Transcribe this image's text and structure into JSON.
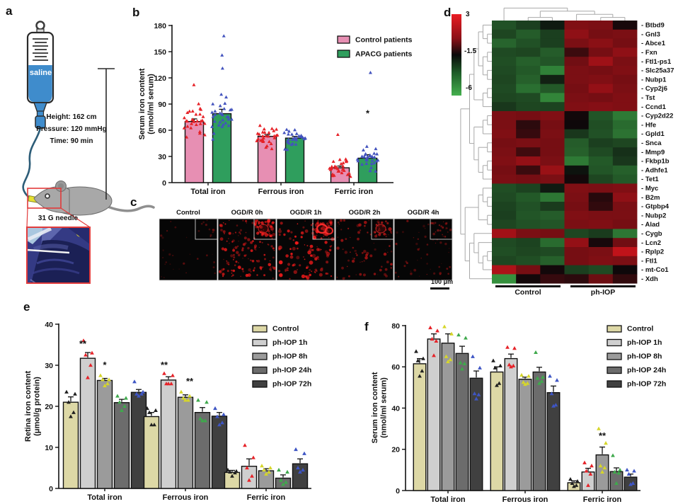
{
  "panels": {
    "a": {
      "letter": "a",
      "saline_label": "saline",
      "height_label": "Height: 162 cm",
      "pressure_label": "Pressure: 120 mmHg",
      "time_label": "Time: 90 min",
      "needle_label": "31 G needle"
    },
    "b": {
      "letter": "b"
    },
    "c": {
      "letter": "c",
      "images": [
        {
          "label": "Control"
        },
        {
          "label": "OGD/R 0h"
        },
        {
          "label": "OGD/R 1h"
        },
        {
          "label": "OGD/R 2h"
        },
        {
          "label": "OGD/R 4h"
        }
      ],
      "scale_label": "100 μm"
    },
    "d": {
      "letter": "d",
      "colorbar": {
        "max_label": "3",
        "mid_label": "-1.5",
        "min_label": "-6"
      },
      "group_labels": [
        "Control",
        "ph-IOP"
      ]
    },
    "e": {
      "letter": "e"
    },
    "f": {
      "letter": "f"
    }
  },
  "chart_data": [
    {
      "id": "b",
      "type": "bar",
      "title": "Serum iron in control vs APACG patients",
      "ylabel": "Serum iron content\n(nmol/ml serum)",
      "ylim": [
        0,
        180
      ],
      "yticks": [
        0,
        30,
        60,
        90,
        120,
        150,
        180
      ],
      "categories": [
        "Total iron",
        "Ferrous iron",
        "Ferric iron"
      ],
      "legend_position": "top-right",
      "series": [
        {
          "name": "Control patients",
          "color": "#E78FB3",
          "point_color": "#E62228",
          "means": [
            70,
            53,
            17
          ],
          "sem": [
            3,
            2,
            2
          ],
          "n_points": 30,
          "sd": [
            15,
            10,
            8
          ]
        },
        {
          "name": "APACG patients",
          "color": "#2F9E5D",
          "point_color": "#4353BE",
          "means": [
            79,
            51,
            28
          ],
          "sem": [
            5,
            2,
            4
          ],
          "n_points": 30,
          "sd": [
            20,
            9,
            11
          ]
        }
      ],
      "outliers": [
        {
          "ci": 0,
          "si": 1,
          "values": [
            168,
            146,
            131
          ]
        },
        {
          "ci": 0,
          "si": 0,
          "values": [
            112
          ]
        },
        {
          "ci": 2,
          "si": 0,
          "values": [
            55
          ]
        },
        {
          "ci": 2,
          "si": 1,
          "values": [
            126
          ]
        }
      ],
      "significance": [
        {
          "ci": 2,
          "si": 1,
          "label": "*",
          "y": 79,
          "dx": 0
        }
      ]
    },
    {
      "id": "d",
      "type": "heatmap",
      "colorbar": {
        "ticks": [
          3,
          -1.5,
          -6
        ],
        "max_color": "#ea1c23",
        "mid_color": "#0a0a0a",
        "min_color": "#44b04e"
      },
      "column_groups": [
        {
          "label": "Control",
          "n": 3
        },
        {
          "label": "ph-IOP",
          "n": 3
        }
      ],
      "rows": [
        "Btbd9",
        "Gnl3",
        "Abce1",
        "Fxn",
        "Ftl1-ps1",
        "Slc25a37",
        "Nubp1",
        "Cyp2j6",
        "Tst",
        "Ccnd1",
        "Cyp2d22",
        "Hfe",
        "Gpld1",
        "Snca",
        "Mmp9",
        "Fkbp1b",
        "Adhfe1",
        "Tet1",
        "Myc",
        "B2m",
        "Gtpbp4",
        "Nubp2",
        "Alad",
        "Cygb",
        "Lcn2",
        "Rplp2",
        "Ftl1",
        "mt-Co1",
        "Xdh"
      ],
      "values": [
        [
          -3.5,
          -3.0,
          -2.0,
          0.9,
          0.8,
          -1.2
        ],
        [
          -3.2,
          -3.8,
          -3.0,
          1.2,
          0.7,
          0.8
        ],
        [
          -4.0,
          -3.5,
          -3.0,
          0.8,
          1.1,
          0.7
        ],
        [
          -3.3,
          -3.2,
          -3.8,
          -0.5,
          0.7,
          1.2
        ],
        [
          -3.4,
          -3.9,
          -3.6,
          0.6,
          1.5,
          0.8
        ],
        [
          -3.3,
          -3.7,
          -4.8,
          0.8,
          0.7,
          0.9
        ],
        [
          -3.2,
          -3.9,
          -2.2,
          0.8,
          0.9,
          0.7
        ],
        [
          -3.3,
          -4.3,
          -3.7,
          0.7,
          1.3,
          0.8
        ],
        [
          -3.2,
          -3.3,
          -4.9,
          0.8,
          0.7,
          0.9
        ],
        [
          -2.8,
          -3.2,
          -3.1,
          0.9,
          1.0,
          0.9
        ],
        [
          0.8,
          0.7,
          0.9,
          -1.3,
          -3.6,
          -4.6
        ],
        [
          0.8,
          -0.8,
          0.7,
          -1.4,
          -3.4,
          -4.2
        ],
        [
          0.9,
          -0.6,
          0.8,
          -2.8,
          -3.5,
          -4.4
        ],
        [
          0.7,
          0.8,
          0.7,
          -3.8,
          -3.0,
          -3.2
        ],
        [
          0.8,
          -0.4,
          0.7,
          -3.9,
          -3.3,
          -2.6
        ],
        [
          0.9,
          1.3,
          0.8,
          -4.6,
          -3.7,
          -2.8
        ],
        [
          0.7,
          -0.5,
          1.4,
          -1.8,
          -3.6,
          -3.9
        ],
        [
          0.8,
          0.7,
          0.8,
          -1.3,
          -3.2,
          -3.7
        ],
        [
          -3.4,
          -3.1,
          -2.0,
          0.9,
          0.8,
          0.9
        ],
        [
          -3.3,
          -3.7,
          -4.5,
          0.8,
          -0.9,
          1.2
        ],
        [
          -3.1,
          -3.5,
          -2.9,
          0.7,
          -0.7,
          0.8
        ],
        [
          -3.0,
          -3.6,
          -3.8,
          0.9,
          0.8,
          0.8
        ],
        [
          -3.2,
          -3.5,
          -3.6,
          0.8,
          0.9,
          0.7
        ],
        [
          1.6,
          0.8,
          0.7,
          -3.2,
          -2.9,
          -4.5
        ],
        [
          -3.3,
          -3.1,
          -4.2,
          1.3,
          -1.2,
          0.6
        ],
        [
          -3.4,
          -3.2,
          -3.3,
          0.7,
          0.8,
          2.2
        ],
        [
          -3.2,
          -3.4,
          -3.9,
          0.7,
          0.9,
          0.8
        ],
        [
          1.8,
          0.7,
          -1.3,
          -3.0,
          -3.3,
          -1.4
        ],
        [
          -5.2,
          -1.3,
          -0.6,
          -0.8,
          0.5,
          -0.7
        ]
      ],
      "col_tree": [
        0,
        [
          [
            1,
            2
          ],
          [
            3,
            [
              4,
              5
            ]
          ]
        ]
      ],
      "row_tree": [
        [
          [
            [
              [
                0,
                [
                  1,
                  2
                ]
              ],
              [
                [
                  3,
                  4
                ],
                [
                  5,
                  6
                ]
              ]
            ],
            [
              [
                7,
                8
              ],
              9
            ]
          ],
          [
            [
              [
                10,
                11
              ],
              12
            ],
            [
              [
                13,
                14
              ],
              [
                [
                  15,
                  16
                ],
                17
              ]
            ]
          ]
        ],
        [
          [
            [
              18,
              [
                19,
                20
              ]
            ],
            [
              21,
              22
            ]
          ],
          [
            [
              23,
              [
                24,
                [
                  [
                    25,
                    26
                  ],
                  27
                ]
              ]
            ],
            28
          ]
        ]
      ]
    },
    {
      "id": "e",
      "type": "bar",
      "title": "Retina iron content after ph-IOP",
      "ylabel": "Retina iron content\n(μmol/g protein)",
      "ylim": [
        0,
        40
      ],
      "yticks": [
        0,
        10,
        20,
        30,
        40
      ],
      "categories": [
        "Total iron",
        "Ferrous iron",
        "Ferric iron"
      ],
      "legend_position": "top-right",
      "series": [
        {
          "name": "Control",
          "color": "#DDD8A6",
          "point_color": "#1F1F1F",
          "means": [
            21,
            17.5,
            3.9
          ],
          "sem": [
            1.3,
            1.0,
            0.5
          ],
          "points": [
            [
              23.5,
              23,
              21,
              18.5,
              17.5
            ],
            [
              19.5,
              19,
              18.5,
              15.5,
              15.5
            ],
            [
              4.5,
              4.2,
              4,
              3.8,
              3
            ]
          ]
        },
        {
          "name": "ph-IOP 1h",
          "color": "#CFCFCF",
          "point_color": "#E62228",
          "means": [
            31.7,
            26.4,
            5.4
          ],
          "sem": [
            1.4,
            0.8,
            1.8
          ],
          "points": [
            [
              36,
              33,
              32.5,
              30,
              27
            ],
            [
              28,
              27.5,
              25.5,
              25.5,
              25.5
            ],
            [
              10.5,
              7.5,
              5,
              3,
              2
            ]
          ]
        },
        {
          "name": "ph-IOP 8h",
          "color": "#9B9B9B",
          "point_color": "#D6D62A",
          "means": [
            26.3,
            22.2,
            4.3
          ],
          "sem": [
            0.5,
            0.6,
            0.5
          ],
          "points": [
            [
              27.5,
              26.5,
              26.5,
              25.5,
              25
            ],
            [
              23.5,
              22.5,
              22,
              21.5,
              21.5
            ],
            [
              5.5,
              5,
              4.5,
              4,
              3.5
            ]
          ]
        },
        {
          "name": "ph-IOP 24h",
          "color": "#6C6C6C",
          "point_color": "#3FA94C",
          "means": [
            20.9,
            18.5,
            2.5
          ],
          "sem": [
            0.8,
            1.2,
            0.8
          ],
          "points": [
            [
              22.5,
              22,
              21,
              20,
              19
            ],
            [
              21.5,
              21,
              17,
              16.5,
              16.5
            ],
            [
              4.5,
              4,
              2,
              1.5,
              1
            ]
          ]
        },
        {
          "name": "ph-IOP 72h",
          "color": "#404040",
          "point_color": "#3E55C4",
          "means": [
            23.4,
            17.6,
            6.0
          ],
          "sem": [
            0.7,
            0.9,
            1.2
          ],
          "points": [
            [
              26,
              23.5,
              23,
              23,
              22.5
            ],
            [
              19.5,
              18,
              17.5,
              16,
              15.5
            ],
            [
              9.5,
              8.5,
              5,
              4.5,
              4
            ]
          ]
        }
      ],
      "significance": [
        {
          "ci": 0,
          "si": 1,
          "label": "**",
          "y": 35.2,
          "dx": -7
        },
        {
          "ci": 0,
          "si": 2,
          "label": "*",
          "y": 30,
          "dx": 0
        },
        {
          "ci": 1,
          "si": 1,
          "label": "**",
          "y": 30,
          "dx": -6
        },
        {
          "ci": 1,
          "si": 2,
          "label": "**",
          "y": 26,
          "dx": 6
        }
      ]
    },
    {
      "id": "f",
      "type": "bar",
      "title": "Serum iron content after ph-IOP",
      "ylabel": "Serum iron content\n(nmol/ml serum)",
      "ylim": [
        0,
        80
      ],
      "yticks": [
        0,
        20,
        40,
        60,
        80
      ],
      "categories": [
        "Total iron",
        "Ferrous iron",
        "Ferric iron"
      ],
      "legend_position": "top-right",
      "series": [
        {
          "name": "Control",
          "color": "#DDD8A6",
          "point_color": "#1F1F1F",
          "means": [
            61.5,
            57.5,
            3.8
          ],
          "sem": [
            2.5,
            2.5,
            0.9
          ],
          "points": [
            [
              67.5,
              64,
              63,
              58,
              55.5
            ],
            [
              63,
              60.5,
              59.5,
              52,
              51
            ],
            [
              5.5,
              4.5,
              3.5,
              2.5,
              2
            ]
          ]
        },
        {
          "name": "ph-IOP 1h",
          "color": "#CFCFCF",
          "point_color": "#E62228",
          "means": [
            73.5,
            64,
            9
          ],
          "sem": [
            2.5,
            2.2,
            1.8
          ],
          "points": [
            [
              79,
              77.5,
              73.5,
              72.5,
              65.5
            ],
            [
              69.5,
              69,
              61,
              60.5,
              60
            ],
            [
              13.5,
              12,
              9.5,
              8,
              2.5
            ]
          ]
        },
        {
          "name": "ph-IOP 8h",
          "color": "#9B9B9B",
          "point_color": "#D6D62A",
          "means": [
            71.5,
            54,
            17.3
          ],
          "sem": [
            4.5,
            1.0,
            3.8
          ],
          "points": [
            [
              79.5,
              76,
              65,
              63.5,
              62.5
            ],
            [
              56,
              55.5,
              52.5,
              52,
              51.5
            ],
            [
              30,
              23,
              12,
              11,
              9
            ]
          ]
        },
        {
          "name": "ph-IOP 24h",
          "color": "#6C6C6C",
          "point_color": "#3FA94C",
          "means": [
            66.5,
            57.5,
            9.2
          ],
          "sem": [
            3.5,
            2.3,
            1.8
          ],
          "points": [
            [
              75.5,
              74,
              62,
              61.5,
              59
            ],
            [
              67,
              55,
              54.5,
              53,
              52
            ],
            [
              17,
              10,
              9,
              8.5,
              3.5
            ]
          ]
        },
        {
          "name": "ph-IOP 72h",
          "color": "#404040",
          "point_color": "#3E55C4",
          "means": [
            54.5,
            47.5,
            6.5
          ],
          "sem": [
            3.5,
            3.2,
            1.5
          ],
          "points": [
            [
              65,
              59.5,
              47,
              46.5,
              44.5
            ],
            [
              55.5,
              53.5,
              47,
              41.5,
              41
            ],
            [
              10,
              9.5,
              8,
              3.5,
              3
            ]
          ]
        }
      ],
      "significance": [
        {
          "ci": 2,
          "si": 2,
          "label": "**",
          "y": 26.5,
          "dx": 0
        }
      ]
    }
  ]
}
